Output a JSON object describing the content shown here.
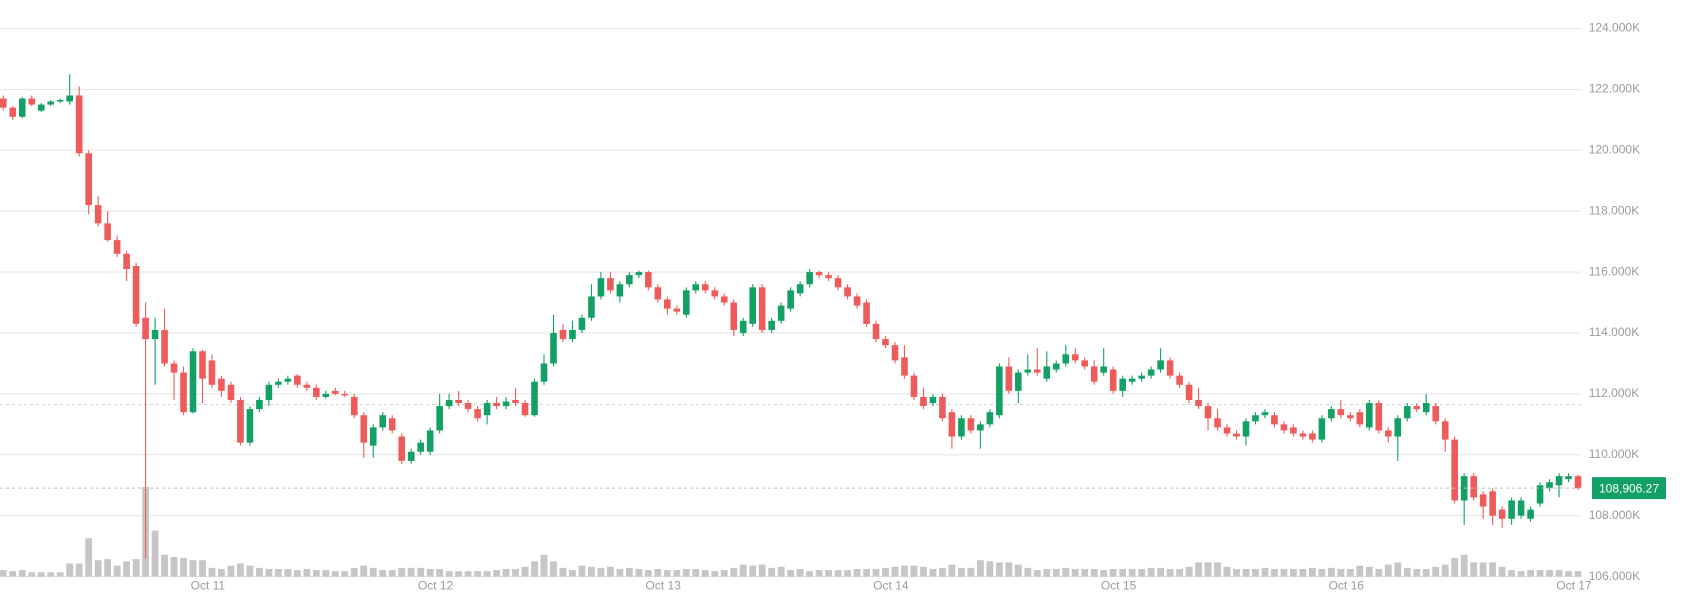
{
  "chart_data": {
    "type": "candlestick",
    "up_color": "#13a065",
    "down_color": "#ee5b5b",
    "volume_color": "#c6c6c6",
    "grid": true,
    "ylim": [
      106000,
      124000
    ],
    "yticks": [
      {
        "value": 106000,
        "label": "106.000K"
      },
      {
        "value": 108000,
        "label": "108.000K"
      },
      {
        "value": 110000,
        "label": "110.000K"
      },
      {
        "value": 112000,
        "label": "112.000K"
      },
      {
        "value": 114000,
        "label": "114.000K"
      },
      {
        "value": 116000,
        "label": "116.000K"
      },
      {
        "value": 118000,
        "label": "118.000K"
      },
      {
        "value": 120000,
        "label": "120.000K"
      },
      {
        "value": 122000,
        "label": "122.000K"
      },
      {
        "value": 124000,
        "label": "124.000K"
      }
    ],
    "xticks": [
      "Oct 11",
      "Oct 12",
      "Oct 13",
      "Oct 14",
      "Oct 15",
      "Oct 16",
      "Oct 17"
    ],
    "last_price": {
      "value": 108906.27,
      "label": "108,906.27"
    },
    "reference_line": 111650,
    "volume_ylim": [
      0,
      100
    ],
    "ohlc": [
      [
        121700,
        121800,
        121300,
        121400
      ],
      [
        121400,
        121450,
        121000,
        121100
      ],
      [
        121100,
        121750,
        121050,
        121700
      ],
      [
        121700,
        121800,
        121450,
        121500
      ],
      [
        121300,
        121550,
        121250,
        121500
      ],
      [
        121500,
        121650,
        121450,
        121600
      ],
      [
        121600,
        121700,
        121550,
        121650
      ],
      [
        121600,
        122500,
        121500,
        121800
      ],
      [
        121800,
        122100,
        119800,
        119900
      ],
      [
        119900,
        120000,
        117900,
        118200
      ],
      [
        118200,
        118500,
        117500,
        117600
      ],
      [
        117600,
        118000,
        117000,
        117050
      ],
      [
        117050,
        117200,
        116500,
        116600
      ],
      [
        116600,
        116700,
        115700,
        116100
      ],
      [
        116200,
        116300,
        114200,
        114300
      ],
      [
        114500,
        115000,
        106600,
        113800
      ],
      [
        113800,
        114500,
        112300,
        114100
      ],
      [
        114100,
        114800,
        112900,
        113000
      ],
      [
        113000,
        113100,
        111800,
        112700
      ],
      [
        112700,
        112900,
        111300,
        111400
      ],
      [
        111400,
        113500,
        111350,
        113400
      ],
      [
        113400,
        113450,
        111700,
        112500
      ],
      [
        113100,
        113300,
        112200,
        112300
      ],
      [
        112500,
        112600,
        111900,
        112100
      ],
      [
        112300,
        112400,
        111700,
        111800
      ],
      [
        111800,
        111900,
        110300,
        110400
      ],
      [
        110400,
        111600,
        110300,
        111500
      ],
      [
        111500,
        111900,
        111400,
        111800
      ],
      [
        111800,
        112400,
        111600,
        112300
      ],
      [
        112300,
        112500,
        112200,
        112400
      ],
      [
        112400,
        112600,
        112300,
        112500
      ],
      [
        112600,
        112650,
        112200,
        112300
      ],
      [
        112300,
        112400,
        112100,
        112200
      ],
      [
        112200,
        112300,
        111800,
        111900
      ],
      [
        111900,
        112100,
        111850,
        112000
      ],
      [
        112100,
        112200,
        111950,
        112000
      ],
      [
        112000,
        112100,
        111900,
        111950
      ],
      [
        111900,
        112000,
        111200,
        111300
      ],
      [
        111300,
        111400,
        109900,
        110400
      ],
      [
        110300,
        111000,
        109900,
        110900
      ],
      [
        110900,
        111400,
        110800,
        111300
      ],
      [
        111200,
        111300,
        110700,
        110800
      ],
      [
        110600,
        110700,
        109700,
        109800
      ],
      [
        109800,
        110200,
        109700,
        110100
      ],
      [
        110100,
        110500,
        110000,
        110400
      ],
      [
        110100,
        110900,
        110000,
        110800
      ],
      [
        110800,
        112000,
        110700,
        111600
      ],
      [
        111600,
        112000,
        111500,
        111800
      ],
      [
        111800,
        112100,
        111600,
        111700
      ],
      [
        111700,
        111800,
        111400,
        111500
      ],
      [
        111500,
        111600,
        111100,
        111200
      ],
      [
        111300,
        111800,
        111000,
        111700
      ],
      [
        111700,
        111900,
        111500,
        111600
      ],
      [
        111600,
        111900,
        111500,
        111750
      ],
      [
        111800,
        112200,
        111600,
        111700
      ],
      [
        111700,
        111800,
        111250,
        111300
      ],
      [
        111300,
        112500,
        111250,
        112400
      ],
      [
        112400,
        113300,
        112300,
        113000
      ],
      [
        113000,
        114600,
        112900,
        114000
      ],
      [
        114100,
        114300,
        113700,
        113800
      ],
      [
        113800,
        114400,
        113700,
        114100
      ],
      [
        114100,
        114600,
        114000,
        114500
      ],
      [
        114500,
        115600,
        114400,
        115200
      ],
      [
        115200,
        116000,
        115100,
        115800
      ],
      [
        115800,
        116000,
        115300,
        115400
      ],
      [
        115200,
        115700,
        115000,
        115600
      ],
      [
        115600,
        116000,
        115500,
        115900
      ],
      [
        115900,
        116050,
        115800,
        116000
      ],
      [
        116000,
        116050,
        115400,
        115500
      ],
      [
        115500,
        115600,
        115000,
        115100
      ],
      [
        115100,
        115200,
        114600,
        114800
      ],
      [
        114800,
        114900,
        114600,
        114700
      ],
      [
        114600,
        115500,
        114500,
        115400
      ],
      [
        115400,
        115700,
        115300,
        115600
      ],
      [
        115600,
        115700,
        115300,
        115400
      ],
      [
        115400,
        115500,
        115100,
        115200
      ],
      [
        115200,
        115300,
        114900,
        115000
      ],
      [
        115000,
        115100,
        113900,
        114100
      ],
      [
        114000,
        114500,
        113900,
        114400
      ],
      [
        114300,
        115600,
        114200,
        115500
      ],
      [
        115500,
        115600,
        114000,
        114100
      ],
      [
        114100,
        114500,
        114000,
        114400
      ],
      [
        114400,
        115000,
        114300,
        114900
      ],
      [
        114800,
        115500,
        114700,
        115400
      ],
      [
        115300,
        115700,
        115200,
        115600
      ],
      [
        115600,
        116100,
        115500,
        116000
      ],
      [
        116000,
        116050,
        115800,
        115900
      ],
      [
        115900,
        116000,
        115700,
        115800
      ],
      [
        115800,
        115900,
        115400,
        115500
      ],
      [
        115500,
        115600,
        115100,
        115200
      ],
      [
        115200,
        115300,
        114800,
        114900
      ],
      [
        115000,
        115100,
        114200,
        114300
      ],
      [
        114300,
        114400,
        113700,
        113800
      ],
      [
        113800,
        113900,
        113500,
        113600
      ],
      [
        113600,
        113700,
        113000,
        113100
      ],
      [
        113200,
        113600,
        112500,
        112600
      ],
      [
        112600,
        112700,
        111800,
        111900
      ],
      [
        111900,
        112200,
        111500,
        111600
      ],
      [
        111700,
        112000,
        111600,
        111900
      ],
      [
        111900,
        112000,
        111100,
        111200
      ],
      [
        111400,
        111500,
        110200,
        110600
      ],
      [
        110600,
        111300,
        110500,
        111200
      ],
      [
        111200,
        111300,
        110700,
        110800
      ],
      [
        110800,
        111100,
        110200,
        111000
      ],
      [
        111000,
        111500,
        110900,
        111400
      ],
      [
        111300,
        113000,
        111200,
        112900
      ],
      [
        112900,
        113200,
        112000,
        112100
      ],
      [
        112100,
        112800,
        111700,
        112700
      ],
      [
        112700,
        113300,
        112600,
        112800
      ],
      [
        112800,
        113500,
        112600,
        112700
      ],
      [
        112500,
        113400,
        112400,
        112900
      ],
      [
        112800,
        113100,
        112700,
        113000
      ],
      [
        113000,
        113600,
        112900,
        113300
      ],
      [
        113300,
        113500,
        113000,
        113100
      ],
      [
        113100,
        113200,
        112800,
        112900
      ],
      [
        112900,
        113100,
        112300,
        112400
      ],
      [
        112700,
        113500,
        112600,
        112900
      ],
      [
        112800,
        112900,
        112000,
        112100
      ],
      [
        112100,
        112600,
        111900,
        112500
      ],
      [
        112400,
        112600,
        112300,
        112500
      ],
      [
        112500,
        112700,
        112400,
        112600
      ],
      [
        112600,
        112900,
        112500,
        112800
      ],
      [
        112800,
        113500,
        112700,
        113100
      ],
      [
        113100,
        113200,
        112500,
        112600
      ],
      [
        112600,
        112700,
        112200,
        112300
      ],
      [
        112300,
        112400,
        111700,
        111800
      ],
      [
        111800,
        112200,
        111500,
        111600
      ],
      [
        111600,
        111700,
        110800,
        111200
      ],
      [
        111200,
        111500,
        110800,
        110900
      ],
      [
        110900,
        111000,
        110600,
        110700
      ],
      [
        110700,
        110800,
        110500,
        110600
      ],
      [
        110600,
        111200,
        110300,
        111100
      ],
      [
        111100,
        111400,
        111000,
        111300
      ],
      [
        111300,
        111500,
        111200,
        111400
      ],
      [
        111300,
        111400,
        110900,
        111000
      ],
      [
        111000,
        111100,
        110700,
        110800
      ],
      [
        110900,
        111000,
        110600,
        110700
      ],
      [
        110700,
        110800,
        110500,
        110600
      ],
      [
        110700,
        110800,
        110400,
        110500
      ],
      [
        110500,
        111300,
        110400,
        111200
      ],
      [
        111200,
        111600,
        111100,
        111500
      ],
      [
        111500,
        111800,
        111200,
        111300
      ],
      [
        111300,
        111400,
        111100,
        111200
      ],
      [
        111400,
        111500,
        110900,
        111000
      ],
      [
        110900,
        111800,
        110800,
        111700
      ],
      [
        111700,
        111800,
        110700,
        110800
      ],
      [
        110800,
        110900,
        110400,
        110600
      ],
      [
        110600,
        111300,
        109800,
        111200
      ],
      [
        111200,
        111700,
        111100,
        111600
      ],
      [
        111600,
        111700,
        111400,
        111500
      ],
      [
        111400,
        112000,
        111300,
        111700
      ],
      [
        111600,
        111700,
        111000,
        111100
      ],
      [
        111100,
        111200,
        110100,
        110500
      ],
      [
        110500,
        110600,
        108400,
        108500
      ],
      [
        108500,
        109400,
        107700,
        109300
      ],
      [
        109300,
        109400,
        108500,
        108600
      ],
      [
        108700,
        108800,
        107900,
        108300
      ],
      [
        108800,
        108900,
        107700,
        108000
      ],
      [
        108200,
        108300,
        107600,
        107900
      ],
      [
        107900,
        108600,
        107700,
        108500
      ],
      [
        108000,
        108600,
        107900,
        108500
      ],
      [
        107900,
        108300,
        107800,
        108200
      ],
      [
        108400,
        109100,
        108300,
        109000
      ],
      [
        108900,
        109200,
        108800,
        109100
      ],
      [
        109000,
        109400,
        108600,
        109300
      ],
      [
        109200,
        109400,
        109100,
        109300
      ],
      [
        109300,
        109350,
        108850,
        108900
      ]
    ],
    "volume": [
      6,
      5,
      6,
      4,
      4,
      4,
      4,
      12,
      12,
      35,
      15,
      16,
      10,
      14,
      16,
      82,
      42,
      20,
      18,
      17,
      15,
      15,
      8,
      7,
      10,
      12,
      10,
      8,
      7,
      7,
      7,
      6,
      7,
      6,
      6,
      5,
      5,
      8,
      10,
      8,
      6,
      6,
      8,
      8,
      8,
      7,
      7,
      5,
      5,
      5,
      5,
      5,
      6,
      7,
      7,
      9,
      14,
      20,
      14,
      8,
      6,
      10,
      9,
      8,
      9,
      7,
      8,
      7,
      6,
      7,
      6,
      6,
      7,
      7,
      6,
      5,
      6,
      8,
      11,
      10,
      11,
      8,
      9,
      6,
      7,
      5,
      6,
      6,
      6,
      6,
      7,
      7,
      7,
      8,
      9,
      10,
      10,
      9,
      7,
      8,
      11,
      8,
      8,
      15,
      14,
      13,
      13,
      11,
      8,
      6,
      7,
      7,
      8,
      7,
      7,
      7,
      6,
      7,
      7,
      7,
      7,
      8,
      8,
      7,
      7,
      9,
      13,
      13,
      13,
      9,
      7,
      7,
      7,
      8,
      7,
      7,
      7,
      7,
      8,
      7,
      8,
      7,
      7,
      10,
      9,
      7,
      11,
      13,
      8,
      7,
      7,
      9,
      11,
      17,
      20,
      13,
      13,
      13,
      9,
      6,
      5,
      6,
      6,
      6,
      6,
      5,
      5
    ]
  }
}
